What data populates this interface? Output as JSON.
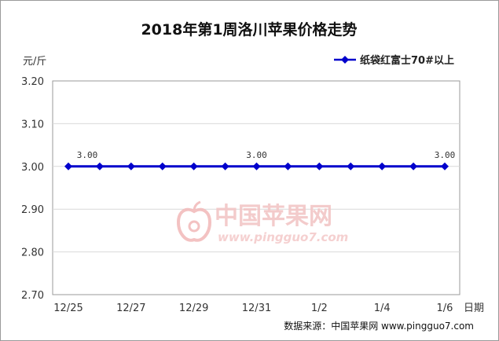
{
  "chart_data": {
    "type": "line",
    "title": "2018年第1周洛川苹果价格走势",
    "ylabel": "元/斤",
    "xlabel": "日期",
    "ylim": [
      2.7,
      3.2
    ],
    "yticks": [
      "3.20",
      "3.10",
      "3.00",
      "2.90",
      "2.80",
      "2.70"
    ],
    "ytick_values": [
      3.2,
      3.1,
      3.0,
      2.9,
      2.8,
      2.7
    ],
    "categories": [
      "12/25",
      "",
      "12/27",
      "",
      "12/29",
      "",
      "12/31",
      "",
      "1/2",
      "",
      "1/4",
      "",
      "1/6"
    ],
    "series": [
      {
        "name": "纸袋红富士70#以上",
        "values": [
          3.0,
          3.0,
          3.0,
          3.0,
          3.0,
          3.0,
          3.0,
          3.0,
          3.0,
          3.0,
          3.0,
          3.0,
          3.0
        ],
        "color": "#0000cc"
      }
    ],
    "data_labels": [
      {
        "index": 0,
        "text": "3.00"
      },
      {
        "index": 6,
        "text": "3.00"
      },
      {
        "index": 12,
        "text": "3.00"
      }
    ],
    "grid": "horizontal",
    "legend_position": "top-right"
  },
  "watermark": {
    "name": "中国苹果网",
    "url": "www.pingguo7.com",
    "color": "#e9a0a0"
  },
  "source": "数据来源：中国苹果网 www.pingguo7.com"
}
